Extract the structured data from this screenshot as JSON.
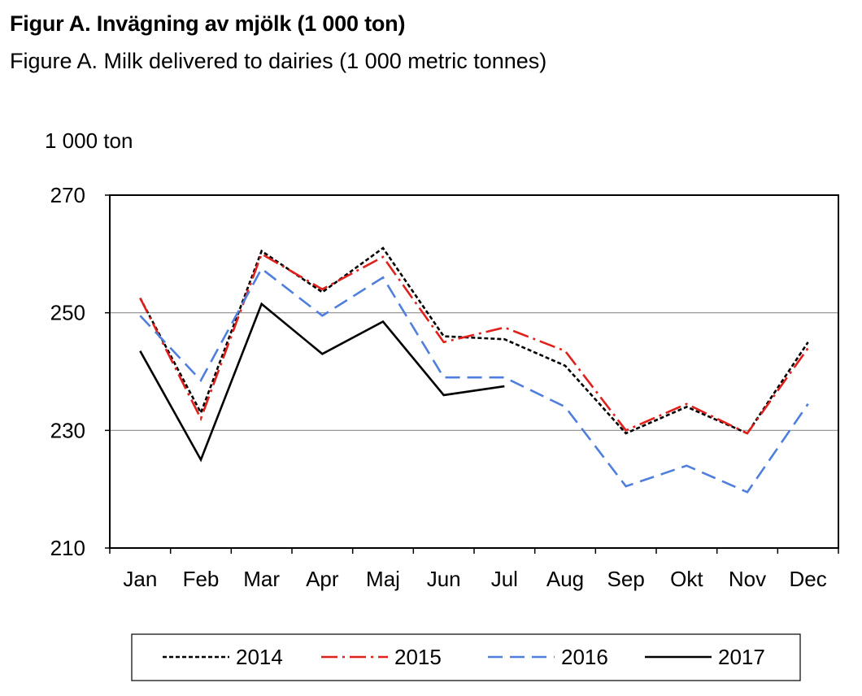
{
  "title": "Figur A. Invägning av mjölk (1 000 ton)",
  "subtitle": "Figure A. Milk delivered to dairies (1 000 metric tonnes)",
  "chart_data": {
    "type": "line",
    "title": "Figur A. Invägning av mjölk (1 000 ton)",
    "subtitle": "Figure A. Milk delivered to dairies (1 000 metric tonnes)",
    "ylabel": "1 000 ton",
    "xlabel": "",
    "ylim": [
      210,
      270
    ],
    "yticks": [
      210,
      230,
      250,
      270
    ],
    "grid": true,
    "legend_position": "bottom",
    "categories": [
      "Jan",
      "Feb",
      "Mar",
      "Apr",
      "Maj",
      "Jun",
      "Jul",
      "Aug",
      "Sep",
      "Okt",
      "Nov",
      "Dec"
    ],
    "series": [
      {
        "name": "2014",
        "color": "#000000",
        "style": "dotted",
        "values": [
          252.5,
          233.0,
          260.5,
          253.5,
          261.0,
          246.0,
          245.5,
          241.0,
          229.5,
          234.0,
          229.5,
          245.0
        ]
      },
      {
        "name": "2015",
        "color": "#e0201b",
        "style": "dashdot",
        "values": [
          252.5,
          232.0,
          260.0,
          254.0,
          259.5,
          245.0,
          247.5,
          243.5,
          230.0,
          234.5,
          229.5,
          244.0
        ]
      },
      {
        "name": "2016",
        "color": "#4f7fdc",
        "style": "dashed",
        "values": [
          249.5,
          238.5,
          257.5,
          249.5,
          256.0,
          239.0,
          239.0,
          234.0,
          220.5,
          224.0,
          219.5,
          234.5
        ]
      },
      {
        "name": "2017",
        "color": "#000000",
        "style": "solid",
        "values": [
          243.5,
          225.0,
          251.5,
          243.0,
          248.5,
          236.0,
          237.5,
          null,
          null,
          null,
          null,
          null
        ]
      }
    ]
  }
}
